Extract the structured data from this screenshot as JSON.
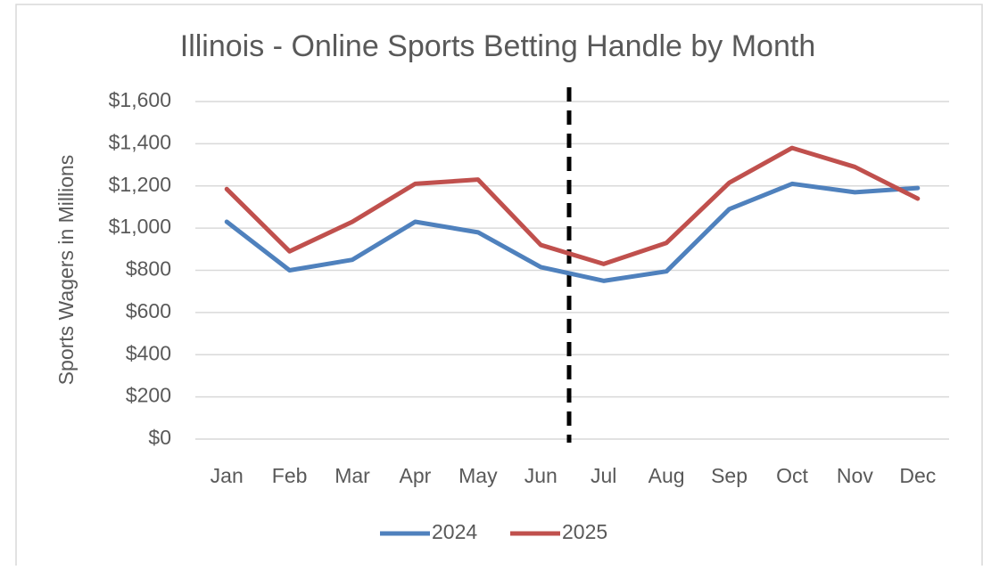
{
  "chart_data": {
    "type": "line",
    "title": "Illinois - Online Sports Betting Handle by Month",
    "ylabel": "Sports Wagers in Millions",
    "categories": [
      "Jan",
      "Feb",
      "Mar",
      "Apr",
      "May",
      "Jun",
      "Jul",
      "Aug",
      "Sep",
      "Oct",
      "Nov",
      "Dec"
    ],
    "series": [
      {
        "name": "2024",
        "color": "#4f81bd",
        "values": [
          1030,
          800,
          850,
          1030,
          980,
          815,
          750,
          795,
          1090,
          1210,
          1170,
          1190
        ]
      },
      {
        "name": "2025",
        "color": "#c0504d",
        "values": [
          1185,
          890,
          1030,
          1210,
          1230,
          920,
          830,
          930,
          1215,
          1380,
          1290,
          1140
        ]
      }
    ],
    "ylim": [
      0,
      1600
    ],
    "yticks": [
      {
        "value": 0,
        "label": "$0"
      },
      {
        "value": 200,
        "label": "$200"
      },
      {
        "value": 400,
        "label": "$400"
      },
      {
        "value": 600,
        "label": "$600"
      },
      {
        "value": 800,
        "label": "$800"
      },
      {
        "value": 1000,
        "label": "$1,000"
      },
      {
        "value": 1200,
        "label": "$1,200"
      },
      {
        "value": 1400,
        "label": "$1,400"
      },
      {
        "value": 1600,
        "label": "$1,600"
      }
    ],
    "grid": true,
    "legend": "bottom"
  }
}
